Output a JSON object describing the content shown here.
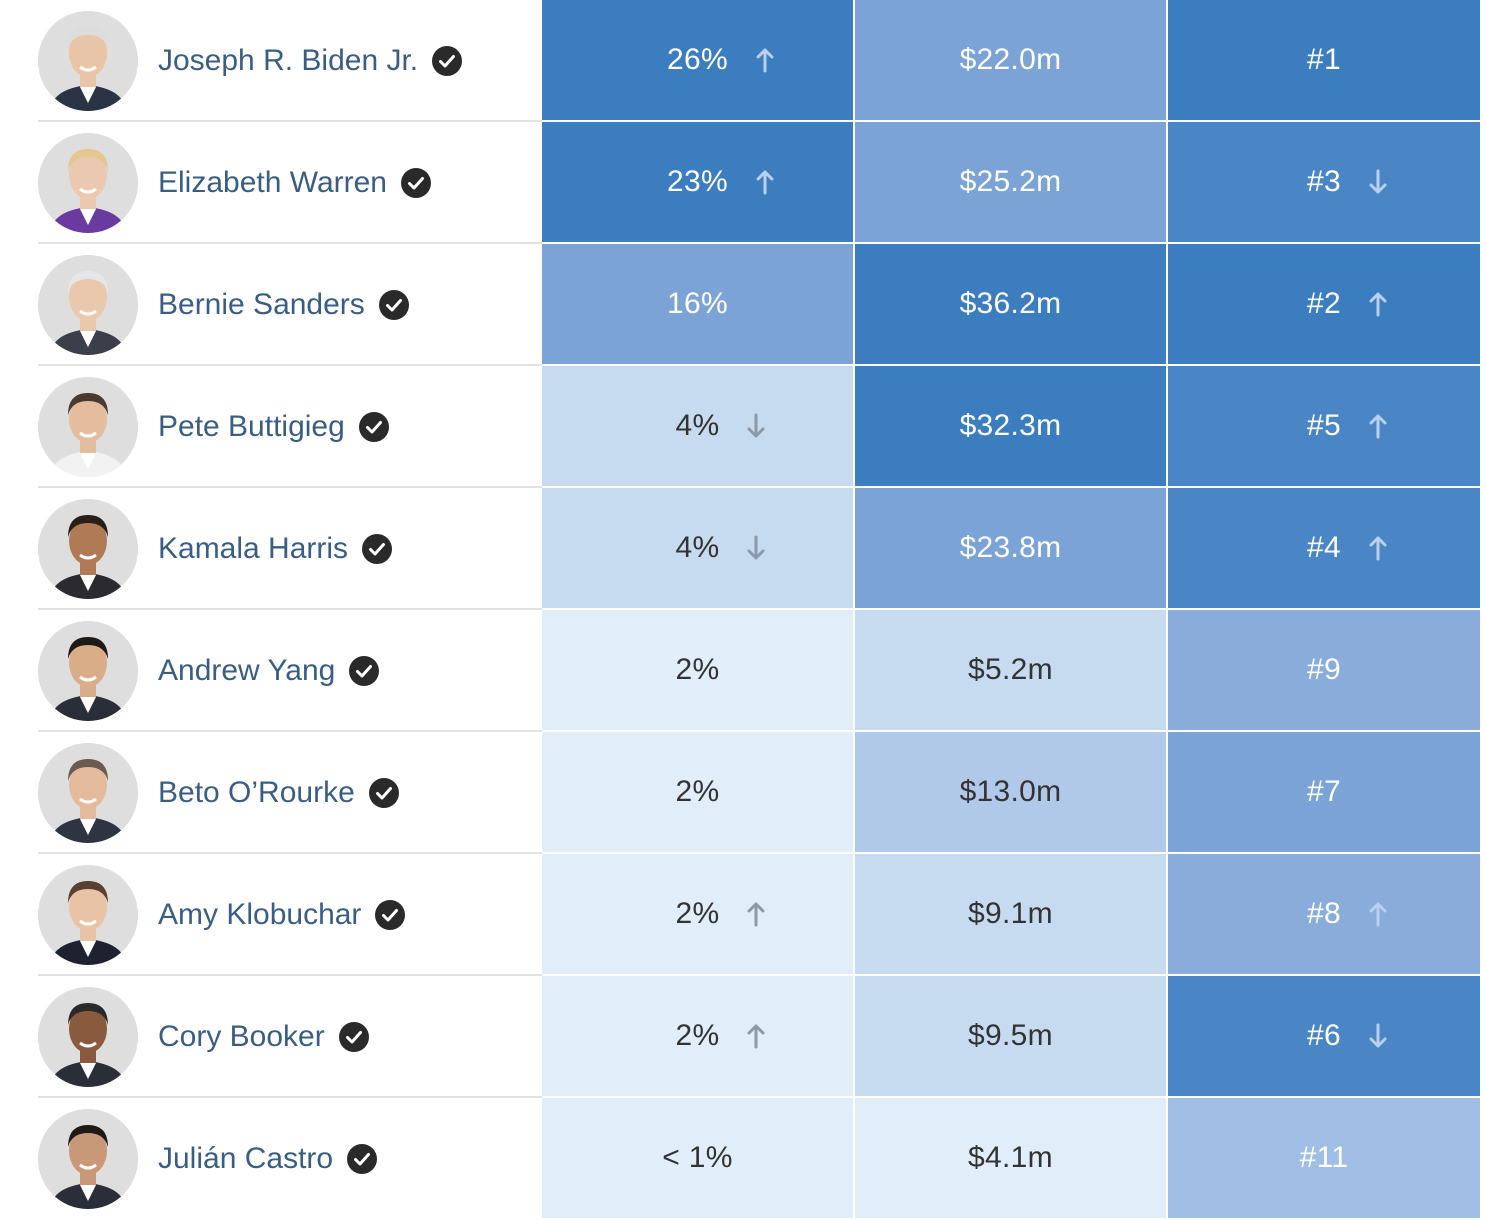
{
  "rows": [
    {
      "name": "Joseph R. Biden Jr.",
      "poll": "26%",
      "poll_trend": "up",
      "money": "$22.0m",
      "rank": "#1",
      "rank_trend": "",
      "poll_shade": "dark",
      "money_shade": "mid",
      "rank_shade": "dark"
    },
    {
      "name": "Elizabeth Warren",
      "poll": "23%",
      "poll_trend": "up",
      "money": "$25.2m",
      "rank": "#3",
      "rank_trend": "down",
      "poll_shade": "dark",
      "money_shade": "mid",
      "rank_shade": "dark2"
    },
    {
      "name": "Bernie Sanders",
      "poll": "16%",
      "poll_trend": "",
      "money": "$36.2m",
      "rank": "#2",
      "rank_trend": "up",
      "poll_shade": "mid",
      "money_shade": "dark",
      "rank_shade": "dark"
    },
    {
      "name": "Pete Buttigieg",
      "poll": "4%",
      "poll_trend": "down",
      "money": "$32.3m",
      "rank": "#5",
      "rank_trend": "up",
      "poll_shade": "light",
      "money_shade": "dark",
      "rank_shade": "dark2"
    },
    {
      "name": "Kamala Harris",
      "poll": "4%",
      "poll_trend": "down",
      "money": "$23.8m",
      "rank": "#4",
      "rank_trend": "up",
      "poll_shade": "light",
      "money_shade": "mid",
      "rank_shade": "dark2"
    },
    {
      "name": "Andrew Yang",
      "poll": "2%",
      "poll_trend": "",
      "money": "$5.2m",
      "rank": "#9",
      "rank_trend": "",
      "poll_shade": "pale",
      "money_shade": "light",
      "rank_shade": "mid2"
    },
    {
      "name": "Beto O’Rourke",
      "poll": "2%",
      "poll_trend": "",
      "money": "$13.0m",
      "rank": "#7",
      "rank_trend": "",
      "poll_shade": "pale",
      "money_shade": "light2",
      "rank_shade": "mid"
    },
    {
      "name": "Amy Klobuchar",
      "poll": "2%",
      "poll_trend": "up",
      "money": "$9.1m",
      "rank": "#8",
      "rank_trend": "up",
      "poll_shade": "pale",
      "money_shade": "light",
      "rank_shade": "mid2"
    },
    {
      "name": "Cory Booker",
      "poll": "2%",
      "poll_trend": "up",
      "money": "$9.5m",
      "rank": "#6",
      "rank_trend": "down",
      "poll_shade": "pale",
      "money_shade": "light",
      "rank_shade": "dark2"
    },
    {
      "name": "Julián Castro",
      "poll": "< 1%",
      "poll_trend": "",
      "money": "$4.1m",
      "rank": "#11",
      "rank_trend": "",
      "poll_shade": "pale",
      "money_shade": "pale",
      "rank_shade": "softmid"
    }
  ],
  "colors": {
    "name_text": "#3a5d84",
    "check_badge": "#2a2a2a",
    "dark_blue": "#3b7dbf",
    "mid_blue": "#7ba3d6",
    "light_blue": "#c7dbf0",
    "pale_blue": "#e1edf8"
  },
  "icons": {
    "verified": "check-badge-icon",
    "up": "arrow-up-icon",
    "down": "arrow-down-icon"
  }
}
